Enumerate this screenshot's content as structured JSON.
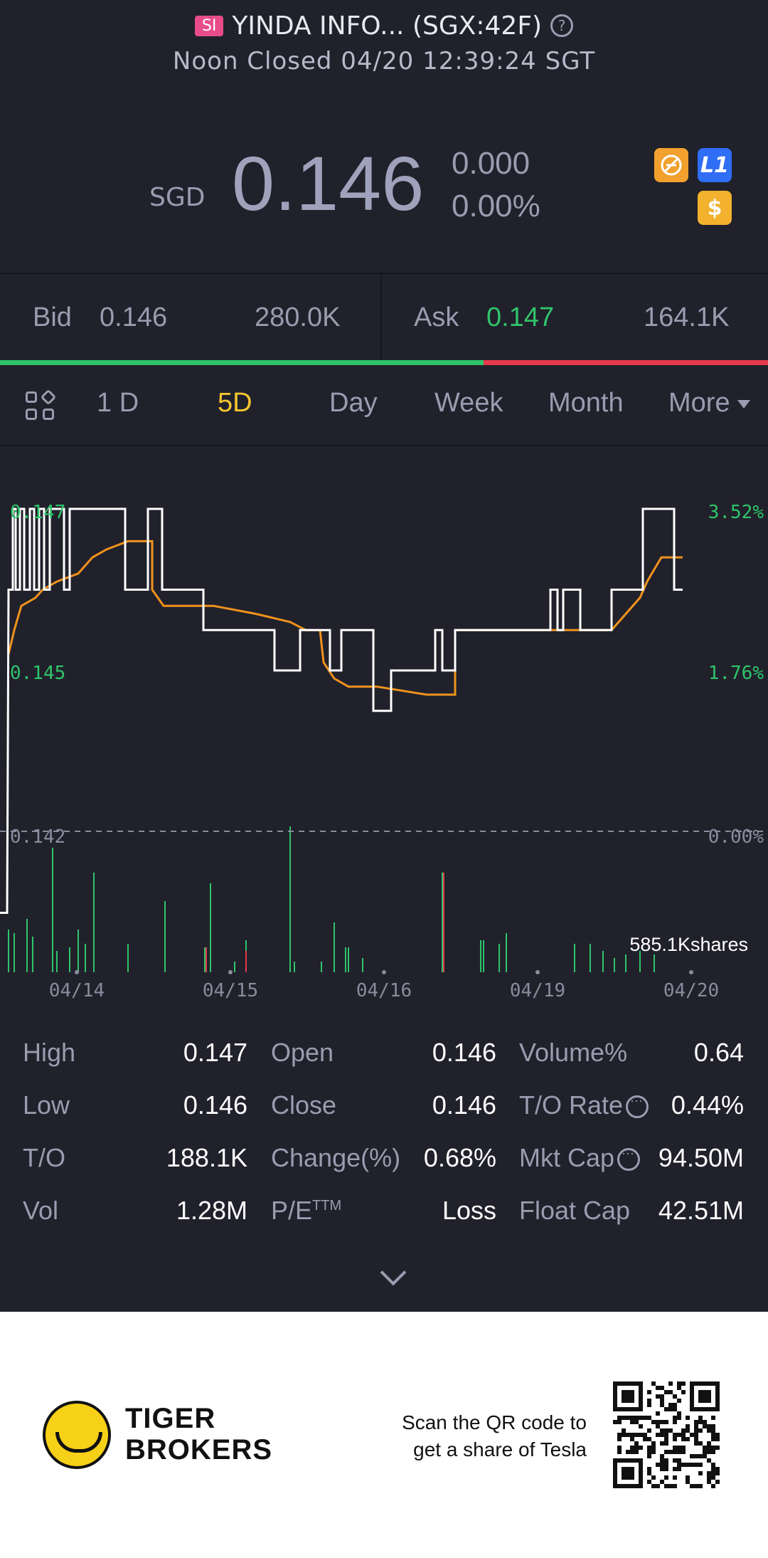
{
  "header": {
    "market_badge": "SI",
    "title": "YINDA INFO... (SGX:42F)",
    "status": "Noon Closed 04/20 12:39:24 SGT"
  },
  "quote": {
    "currency": "SGD",
    "price": "0.146",
    "change": "0.000",
    "change_pct": "0.00%",
    "icons": [
      "hide-icon",
      "level1-icon",
      "dollar-icon"
    ],
    "l1_label": "L1",
    "dollar_label": "$"
  },
  "bidask": {
    "bid_label": "Bid",
    "bid_price": "0.146",
    "bid_size": "280.0K",
    "ask_label": "Ask",
    "ask_price": "0.147",
    "ask_size": "164.1K",
    "bid_share": 0.63
  },
  "tabs": {
    "items": [
      "1 D",
      "5D",
      "Day",
      "Week",
      "Month",
      "More"
    ],
    "active": "5D"
  },
  "chart_data": {
    "type": "line",
    "y_left_labels": [
      "0.147",
      "0.145",
      "0.142"
    ],
    "y_right_labels": [
      "3.52%",
      "1.76%",
      "0.00%"
    ],
    "x_labels": [
      "04/14",
      "04/15",
      "04/16",
      "04/19",
      "04/20"
    ],
    "volume_label": "585.1Kshares",
    "ylim": [
      0.142,
      0.147
    ],
    "colors": {
      "price": "#ffffff",
      "avg": "#f0921d",
      "up": "#2fc46a",
      "down": "#e5394a"
    }
  },
  "stats": {
    "high_label": "High",
    "high": "0.147",
    "open_label": "Open",
    "open": "0.146",
    "volpct_label": "Volume%",
    "volpct": "0.64",
    "low_label": "Low",
    "low": "0.146",
    "close_label": "Close",
    "close": "0.146",
    "tor_label": "T/O Rate",
    "tor": "0.44%",
    "to_label": "T/O",
    "to": "188.1K",
    "chgpct_label": "Change(%)",
    "chgpct": "0.68%",
    "mktcap_label": "Mkt Cap",
    "mktcap": "94.50M",
    "vol_label": "Vol",
    "vol": "1.28M",
    "pe_label": "P/E",
    "pe_sup": "TTM",
    "pe": "Loss",
    "floatcap_label": "Float Cap",
    "floatcap": "42.51M"
  },
  "footer": {
    "brand_line1": "TIGER",
    "brand_line2": "BROKERS",
    "promo_line1": "Scan the QR code to",
    "promo_line2": "get a share of Tesla"
  }
}
